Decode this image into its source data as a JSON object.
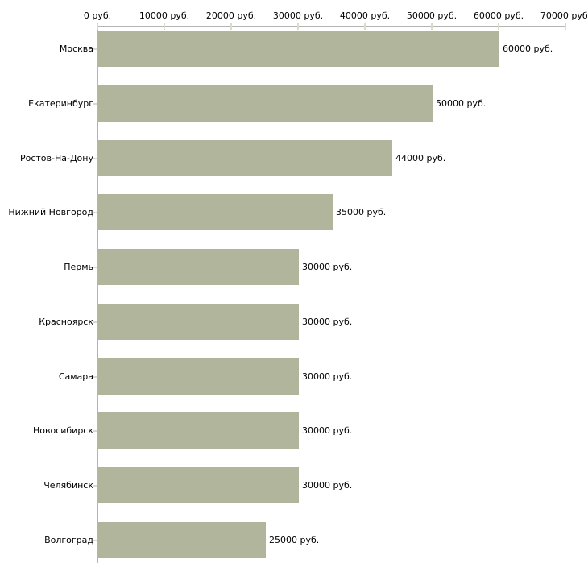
{
  "chart_data": {
    "type": "bar",
    "orientation": "horizontal",
    "title": "",
    "xlabel": "",
    "ylabel": "",
    "categories": [
      "Москва",
      "Екатеринбург",
      "Ростов-На-Дону",
      "Нижний Новгород",
      "Пермь",
      "Красноярск",
      "Самара",
      "Новосибирск",
      "Челябинск",
      "Волгоград"
    ],
    "values": [
      60000,
      50000,
      44000,
      35000,
      30000,
      30000,
      30000,
      30000,
      30000,
      25000
    ],
    "value_labels": [
      "60000 руб.",
      "50000 руб.",
      "44000 руб.",
      "35000 руб.",
      "30000 руб.",
      "30000 руб.",
      "30000 руб.",
      "30000 руб.",
      "30000 руб.",
      "25000 руб."
    ],
    "x_ticks": [
      0,
      10000,
      20000,
      30000,
      40000,
      50000,
      60000,
      70000
    ],
    "x_tick_labels": [
      "0 руб.",
      "10000 руб.",
      "20000 руб.",
      "30000 руб.",
      "40000 руб.",
      "50000 руб.",
      "60000 руб.",
      "70000 руб."
    ],
    "xlim": [
      0,
      70000
    ],
    "x_axis_position": "top",
    "grid": false,
    "legend": false,
    "colors": {
      "bar": "#b0b59b",
      "axis_line": "#b4b4b4",
      "tick_mark": "#d9ddc3",
      "text": "#000000",
      "background": "#ffffff"
    }
  }
}
